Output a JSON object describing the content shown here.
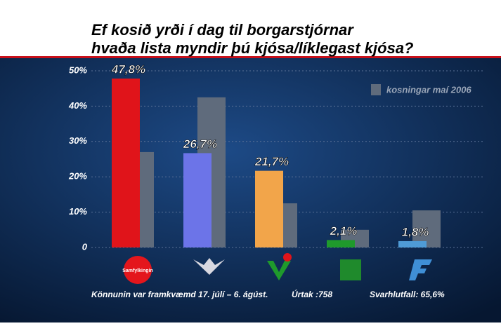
{
  "chart_data": {
    "type": "bar",
    "title": [
      "Ef kosið yrði í dag til borgarstjórnar",
      "hvaða lista myndir þú kjósa/líklegast kjósa?"
    ],
    "categories": [
      "Samfylkingin",
      null,
      null,
      null,
      null
    ],
    "series": [
      {
        "name": "kosningar maí 2006",
        "color": "#5f6b7c",
        "values": [
          27,
          42.5,
          12.5,
          5,
          10.5
        ]
      },
      {
        "name": null,
        "colors": [
          "#e0141a",
          "#6c74e8",
          "#f2a54a",
          "#1f9a2c",
          "#4f9bd6"
        ],
        "values": [
          47.8,
          26.7,
          21.7,
          2.1,
          1.8
        ],
        "value_labels": [
          "47,8%",
          "26,7%",
          "21,7%",
          "2,1%",
          "1,8%"
        ]
      }
    ],
    "ylim": [
      0,
      50
    ],
    "yticks": [
      0,
      {
        "value": 10,
        "label": "10%"
      },
      {
        "value": 20,
        "label": "20%"
      },
      {
        "value": 30,
        "label": "30%"
      },
      {
        "value": 40,
        "label": "40%"
      },
      {
        "value": 50,
        "label": "50%"
      }
    ],
    "grid": true,
    "legend": "top-right",
    "annotations": [
      "Könnunin var framkvæmd 17. júlí – 6. ágúst.",
      "Úrtak :758",
      "Svarhlutfall: 65,6%"
    ]
  }
}
